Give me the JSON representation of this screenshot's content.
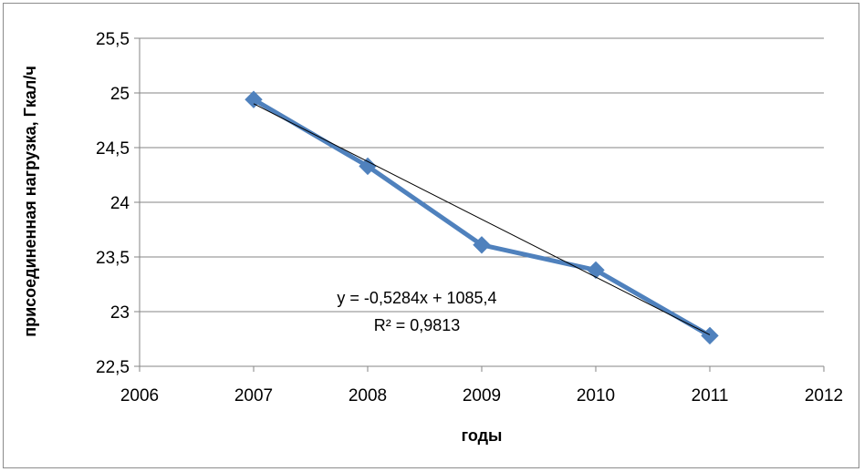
{
  "chart_data": {
    "type": "scatter",
    "xlabel": "годы",
    "ylabel": "присоединенная нагрузка,  Гкал/ч",
    "xlim": [
      2006,
      2012
    ],
    "ylim": [
      22.5,
      25.5
    ],
    "x_ticks": [
      "2006",
      "2007",
      "2008",
      "2009",
      "2010",
      "2011",
      "2012"
    ],
    "y_ticks": [
      "22,5",
      "23",
      "23,5",
      "24",
      "24,5",
      "25",
      "25,5"
    ],
    "grid": "horizontal",
    "series": [
      {
        "x": [
          2007,
          2008,
          2009,
          2010,
          2011
        ],
        "y": [
          24.94,
          24.33,
          23.61,
          23.38,
          22.78
        ],
        "color": "#4f81bd",
        "marker": "diamond",
        "connected": true
      }
    ],
    "trendline": {
      "type": "linear",
      "slope": -0.5284,
      "intercept": 1085.4,
      "x_range": [
        2007,
        2011
      ],
      "color": "#000000",
      "equation_label": "y = -0,5284x + 1085,4",
      "r2_label": "R² = 0,9813"
    }
  }
}
